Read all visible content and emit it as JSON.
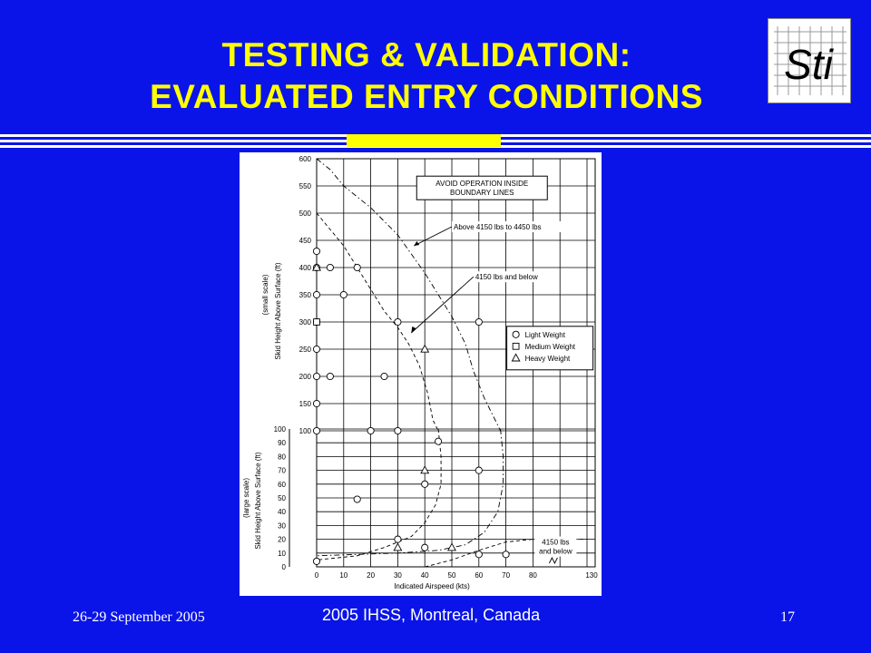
{
  "slide": {
    "title_line1": "TESTING & VALIDATION:",
    "title_line2": "EVALUATED ENTRY CONDITIONS",
    "logo_text": "Sti",
    "footer_date": "26-29 September 2005",
    "footer_event": "2005 IHSS, Montreal, Canada",
    "page_number": "17",
    "colors": {
      "background": "#0a14e8",
      "title": "#ffff00",
      "footer": "#ffffff"
    }
  },
  "chart_data": {
    "type": "scatter",
    "xlabel": "Indicated Airspeed (kts)",
    "x_ticks": [
      "0",
      "10",
      "20",
      "30",
      "40",
      "50",
      "60",
      "70",
      "80",
      "130"
    ],
    "upper_ylabel": [
      "(small scale)",
      "Skid Height Above Surface (ft)"
    ],
    "upper_y_ticks": [
      "100",
      "150",
      "200",
      "250",
      "300",
      "350",
      "400",
      "450",
      "500",
      "550",
      "600"
    ],
    "lower_ylabel": [
      "(large scale)",
      "Skid Height Above Surface (ft)"
    ],
    "lower_y_ticks": [
      "0",
      "10",
      "20",
      "30",
      "40",
      "50",
      "60",
      "70",
      "80",
      "90",
      "100"
    ],
    "annotation_box": [
      "AVOID OPERATION INSIDE",
      "BOUNDARY LINES"
    ],
    "callout_heavy": "Above 4150 lbs to 4450 lbs",
    "callout_light": "4150 lbs and below",
    "callout_bottom": [
      "4150 lbs",
      "and below"
    ],
    "legend": [
      {
        "marker": "circle",
        "label": "Light Weight"
      },
      {
        "marker": "square",
        "label": "Medium Weight"
      },
      {
        "marker": "triangle",
        "label": "Heavy Weight"
      }
    ],
    "points_upper": [
      {
        "x": 0,
        "y": 430,
        "m": "circle"
      },
      {
        "x": 0,
        "y": 400,
        "m": "circle"
      },
      {
        "x": 0,
        "y": 400,
        "m": "triangle"
      },
      {
        "x": 0,
        "y": 350,
        "m": "circle"
      },
      {
        "x": 0,
        "y": 300,
        "m": "circle"
      },
      {
        "x": 0,
        "y": 300,
        "m": "square"
      },
      {
        "x": 0,
        "y": 250,
        "m": "circle"
      },
      {
        "x": 0,
        "y": 200,
        "m": "circle"
      },
      {
        "x": 0,
        "y": 150,
        "m": "circle"
      },
      {
        "x": 0,
        "y": 100,
        "m": "circle"
      },
      {
        "x": 5,
        "y": 400,
        "m": "circle"
      },
      {
        "x": 5,
        "y": 200,
        "m": "circle"
      },
      {
        "x": 10,
        "y": 350,
        "m": "circle"
      },
      {
        "x": 15,
        "y": 400,
        "m": "circle"
      },
      {
        "x": 20,
        "y": 100,
        "m": "circle"
      },
      {
        "x": 25,
        "y": 200,
        "m": "circle"
      },
      {
        "x": 30,
        "y": 300,
        "m": "circle"
      },
      {
        "x": 30,
        "y": 100,
        "m": "circle"
      },
      {
        "x": 40,
        "y": 250,
        "m": "triangle"
      },
      {
        "x": 60,
        "y": 300,
        "m": "circle"
      }
    ],
    "points_lower": [
      {
        "x": 0,
        "y": 4,
        "m": "circle"
      },
      {
        "x": 15,
        "y": 49,
        "m": "circle"
      },
      {
        "x": 30,
        "y": 20,
        "m": "circle"
      },
      {
        "x": 30,
        "y": 14,
        "m": "triangle"
      },
      {
        "x": 40,
        "y": 60,
        "m": "circle"
      },
      {
        "x": 40,
        "y": 70,
        "m": "triangle"
      },
      {
        "x": 40,
        "y": 14,
        "m": "circle"
      },
      {
        "x": 45,
        "y": 91,
        "m": "circle"
      },
      {
        "x": 50,
        "y": 14,
        "m": "triangle"
      },
      {
        "x": 60,
        "y": 70,
        "m": "circle"
      },
      {
        "x": 60,
        "y": 9,
        "m": "circle"
      },
      {
        "x": 70,
        "y": 9,
        "m": "circle"
      }
    ]
  }
}
